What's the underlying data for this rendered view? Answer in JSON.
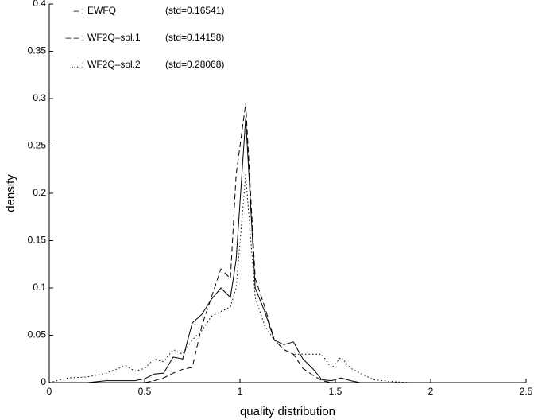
{
  "chart_data": {
    "type": "line",
    "xlabel": "quality distribution",
    "ylabel": "density",
    "xlim": [
      0,
      2.5
    ],
    "ylim": [
      0,
      0.4
    ],
    "xticks": [
      0,
      0.5,
      1,
      1.5,
      2,
      2.5
    ],
    "yticks": [
      0,
      0.05,
      0.1,
      0.15,
      0.2,
      0.25,
      0.3,
      0.35,
      0.4
    ],
    "x": [
      0,
      0.1,
      0.2,
      0.3,
      0.4,
      0.45,
      0.5,
      0.55,
      0.6,
      0.65,
      0.7,
      0.75,
      0.8,
      0.85,
      0.9,
      0.95,
      0.98,
      1.03,
      1.08,
      1.13,
      1.18,
      1.23,
      1.28,
      1.33,
      1.38,
      1.43,
      1.48,
      1.53,
      1.58,
      1.63,
      1.7,
      1.8,
      1.9,
      2.0,
      2.2,
      2.5
    ],
    "series": [
      {
        "name": "EWFQ",
        "legend_marker": "– :",
        "std_label": "(std=0.16541)",
        "color": "#000000",
        "dash": "solid",
        "values": [
          0,
          0,
          0,
          0.002,
          0.002,
          0.002,
          0.004,
          0.009,
          0.01,
          0.027,
          0.025,
          0.063,
          0.072,
          0.088,
          0.1,
          0.09,
          0.13,
          0.28,
          0.1,
          0.075,
          0.045,
          0.04,
          0.043,
          0.025,
          0.015,
          0.003,
          0.002,
          0.005,
          0.002,
          0,
          0,
          0,
          0,
          0,
          0,
          0
        ]
      },
      {
        "name": "WF2Q–sol.1",
        "legend_marker": "– – :",
        "std_label": "(std=0.14158)",
        "color": "#000000",
        "dash": "dashed",
        "values": [
          0,
          0,
          0,
          0,
          0,
          0,
          0,
          0.002,
          0.005,
          0.01,
          0.014,
          0.016,
          0.06,
          0.09,
          0.12,
          0.11,
          0.22,
          0.295,
          0.11,
          0.08,
          0.045,
          0.035,
          0.03,
          0.015,
          0.008,
          0.002,
          0,
          0,
          0,
          0,
          0,
          0,
          0,
          0,
          0,
          0
        ]
      },
      {
        "name": "WF2Q–sol.2",
        "legend_marker": "... :",
        "std_label": "(std=0.28068)",
        "color": "#000000",
        "dash": "dotted",
        "values": [
          0,
          0.005,
          0.006,
          0.01,
          0.018,
          0.012,
          0.015,
          0.025,
          0.022,
          0.035,
          0.03,
          0.045,
          0.055,
          0.07,
          0.075,
          0.08,
          0.1,
          0.22,
          0.09,
          0.06,
          0.045,
          0.035,
          0.03,
          0.03,
          0.03,
          0.03,
          0.015,
          0.027,
          0.015,
          0.01,
          0.003,
          0.001,
          0,
          0,
          0,
          0
        ]
      }
    ]
  }
}
